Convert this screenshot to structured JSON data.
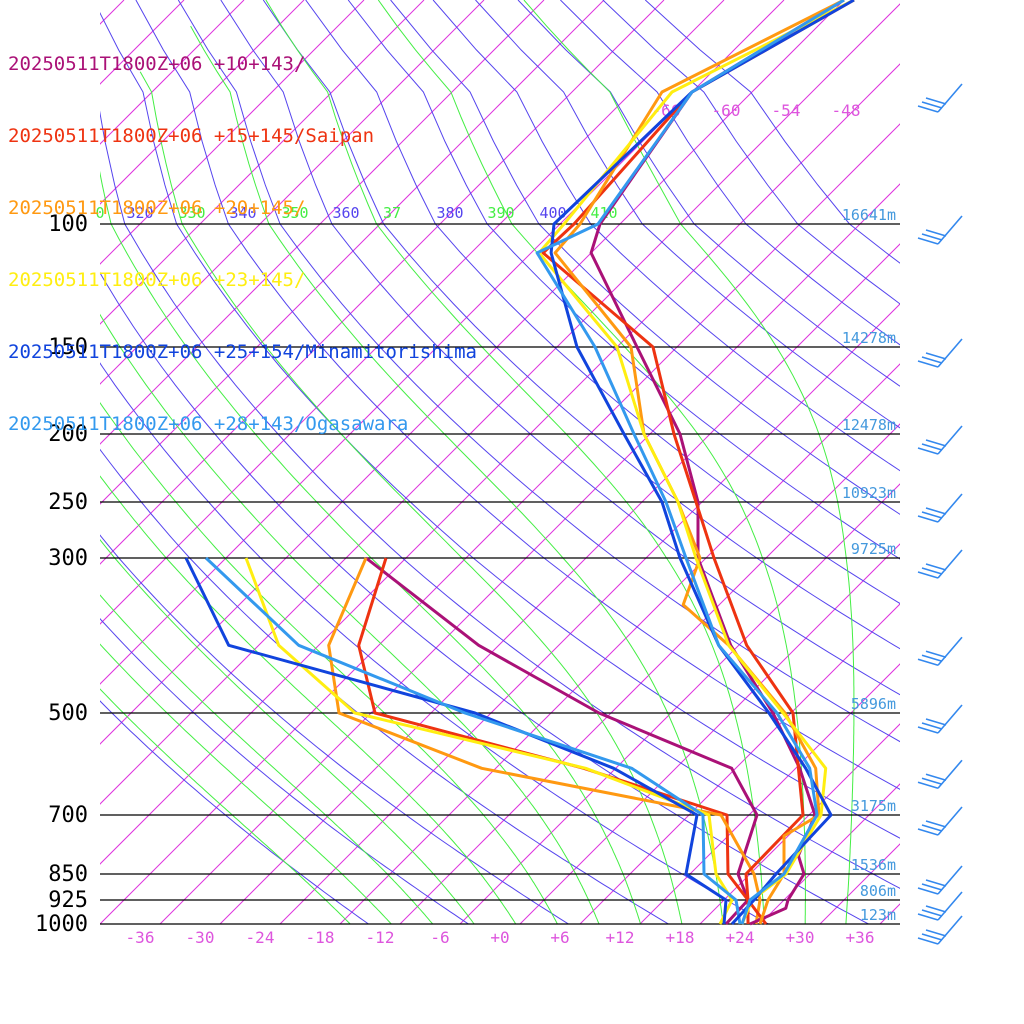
{
  "colors": {
    "isotherm": "#dd33dd",
    "dry_adiabat": "#5544ee",
    "moist_adiabat": "#44ee44",
    "isobar": "#000000",
    "height_label": "#4499dd",
    "wind_barb": "#3388ee",
    "temp_label": "#dd55dd"
  },
  "chart_data": {
    "type": "skew-t",
    "title": "",
    "legend": [
      {
        "name": "20250511T1800Z+06 +10+143/",
        "color": "#aa1177"
      },
      {
        "name": "20250511T1800Z+06 +15+145/Saipan",
        "color": "#ee3311"
      },
      {
        "name": "20250511T1800Z+06 +20+145/",
        "color": "#ff9911"
      },
      {
        "name": "20250511T1800Z+06 +23+145/",
        "color": "#ffee11"
      },
      {
        "name": "20250511T1800Z+06 +25+154/Minamitorishima",
        "color": "#1144dd"
      },
      {
        "name": "20250511T1800Z+06 +28+143/Ogasawara",
        "color": "#3399ee"
      }
    ],
    "pressure_levels": [
      100,
      150,
      200,
      250,
      300,
      500,
      700,
      850,
      925,
      1000
    ],
    "pressure_labels": [
      "100",
      "150",
      "200",
      "250",
      "300",
      "500",
      "700",
      "850",
      "925",
      "1000"
    ],
    "height_labels": [
      {
        "p": 100,
        "text": "16641m"
      },
      {
        "p": 150,
        "text": "14278m"
      },
      {
        "p": 200,
        "text": "12478m"
      },
      {
        "p": 250,
        "text": "10923m"
      },
      {
        "p": 300,
        "text": "9725m"
      },
      {
        "p": 500,
        "text": "5896m"
      },
      {
        "p": 700,
        "text": "3175m"
      },
      {
        "p": 850,
        "text": "1536m"
      },
      {
        "p": 925,
        "text": "806m"
      },
      {
        "p": 1000,
        "text": "123m"
      }
    ],
    "temp_ticks": [
      -36,
      -30,
      -24,
      -18,
      -12,
      -6,
      0,
      6,
      12,
      18,
      24,
      30,
      36
    ],
    "temp_tick_labels": [
      "-36",
      "-30",
      "-24",
      "-18",
      "-12",
      "-6",
      "+0",
      "+6",
      "+12",
      "+18",
      "+24",
      "+30",
      "+36"
    ],
    "upper_temp_labels": [
      "-66",
      "-60",
      "-54",
      "-48"
    ],
    "theta_labels": [
      {
        "value": "0",
        "kind": "moist"
      },
      {
        "value": "320",
        "kind": "dry"
      },
      {
        "value": "330",
        "kind": "moist"
      },
      {
        "value": "340",
        "kind": "dry"
      },
      {
        "value": "350",
        "kind": "moist"
      },
      {
        "value": "360",
        "kind": "dry"
      },
      {
        "value": "37",
        "kind": "moist"
      },
      {
        "value": "380",
        "kind": "dry"
      },
      {
        "value": "390",
        "kind": "moist"
      },
      {
        "value": "400",
        "kind": "dry"
      },
      {
        "value": "410",
        "kind": "moist"
      }
    ],
    "temperature_profiles": [
      {
        "station": 0,
        "points": [
          [
            1000,
            25
          ],
          [
            950,
            27
          ],
          [
            925,
            26.4
          ],
          [
            850,
            25.4
          ],
          [
            800,
            23
          ],
          [
            700,
            20.6
          ],
          [
            600,
            14.4
          ],
          [
            500,
            6.2
          ],
          [
            400,
            -4.8
          ],
          [
            300,
            -16.8
          ],
          [
            250,
            -22.4
          ],
          [
            200,
            -31
          ],
          [
            150,
            -44
          ],
          [
            110,
            -58
          ],
          [
            100,
            -60
          ],
          [
            70,
            -64
          ],
          [
            50,
            -58
          ]
        ]
      },
      {
        "station": 1,
        "points": [
          [
            1000,
            26.6
          ],
          [
            925,
            22.4
          ],
          [
            850,
            19.6
          ],
          [
            700,
            19.4
          ],
          [
            500,
            8.2
          ],
          [
            400,
            -3.2
          ],
          [
            300,
            -15.2
          ],
          [
            250,
            -22.6
          ],
          [
            200,
            -31.6
          ],
          [
            150,
            -42.4
          ],
          [
            110,
            -62.8
          ],
          [
            100,
            -62.6
          ],
          [
            70,
            -64
          ],
          [
            50,
            -57
          ]
        ]
      },
      {
        "station": 2,
        "points": [
          [
            1000,
            26
          ],
          [
            925,
            24.4
          ],
          [
            850,
            23.4
          ],
          [
            750,
            19.6
          ],
          [
            700,
            21
          ],
          [
            600,
            16
          ],
          [
            500,
            7.4
          ],
          [
            400,
            -5
          ],
          [
            350,
            -13.6
          ],
          [
            300,
            -16.6
          ],
          [
            250,
            -24.4
          ],
          [
            200,
            -34.6
          ],
          [
            150,
            -44.6
          ],
          [
            110,
            -61.6
          ],
          [
            100,
            -62
          ],
          [
            70,
            -67
          ],
          [
            50,
            -58
          ]
        ]
      },
      {
        "station": 3,
        "points": [
          [
            1000,
            24.2
          ],
          [
            925,
            22.8
          ],
          [
            850,
            23.6
          ],
          [
            700,
            21.2
          ],
          [
            600,
            17
          ],
          [
            500,
            7.2
          ],
          [
            400,
            -5
          ],
          [
            300,
            -17
          ],
          [
            250,
            -24.4
          ],
          [
            200,
            -34.6
          ],
          [
            150,
            -46
          ],
          [
            110,
            -63.2
          ],
          [
            100,
            -63.6
          ],
          [
            70,
            -66
          ],
          [
            50,
            -57
          ]
        ]
      },
      {
        "station": 4,
        "points": [
          [
            1000,
            23.2
          ],
          [
            925,
            23
          ],
          [
            850,
            22.6
          ],
          [
            700,
            22.2
          ],
          [
            600,
            15
          ],
          [
            500,
            5.8
          ],
          [
            400,
            -6
          ],
          [
            300,
            -18.6
          ],
          [
            250,
            -26
          ],
          [
            200,
            -36.6
          ],
          [
            150,
            -50
          ],
          [
            110,
            -62
          ],
          [
            100,
            -64.6
          ],
          [
            70,
            -64
          ],
          [
            50,
            -57
          ]
        ]
      },
      {
        "station": 5,
        "points": [
          [
            1000,
            24.2
          ],
          [
            925,
            22.6
          ],
          [
            850,
            23.4
          ],
          [
            700,
            20.8
          ],
          [
            600,
            15.4
          ],
          [
            500,
            6.6
          ],
          [
            400,
            -6
          ],
          [
            300,
            -18
          ],
          [
            250,
            -25.6
          ],
          [
            200,
            -35.6
          ],
          [
            150,
            -48.2
          ],
          [
            110,
            -63.4
          ],
          [
            100,
            -60.2
          ],
          [
            70,
            -64
          ],
          [
            50,
            -58
          ]
        ]
      }
    ],
    "dewpoint_profiles": [
      {
        "station": 0,
        "points": [
          [
            1000,
            22.6
          ],
          [
            925,
            22.4
          ],
          [
            850,
            18.8
          ],
          [
            700,
            14.8
          ],
          [
            600,
            7.6
          ],
          [
            500,
            -11.2
          ],
          [
            400,
            -30
          ],
          [
            300,
            -50
          ]
        ]
      },
      {
        "station": 1,
        "points": [
          [
            1000,
            24.8
          ],
          [
            925,
            22.4
          ],
          [
            850,
            17.8
          ],
          [
            700,
            11.8
          ],
          [
            600,
            -7.2
          ],
          [
            500,
            -33.6
          ],
          [
            400,
            -42
          ],
          [
            300,
            -48
          ]
        ]
      },
      {
        "station": 2,
        "points": [
          [
            1000,
            25.6
          ],
          [
            925,
            23.6
          ],
          [
            850,
            20.4
          ],
          [
            700,
            11.2
          ],
          [
            600,
            -17.4
          ],
          [
            500,
            -37.2
          ],
          [
            400,
            -45
          ],
          [
            300,
            -50
          ]
        ]
      },
      {
        "station": 3,
        "points": [
          [
            1000,
            22
          ],
          [
            925,
            20.8
          ],
          [
            850,
            16.6
          ],
          [
            700,
            10
          ],
          [
            600,
            -7
          ],
          [
            500,
            -35.6
          ],
          [
            400,
            -50
          ],
          [
            300,
            -62
          ]
        ]
      },
      {
        "station": 4,
        "points": [
          [
            1000,
            22.4
          ],
          [
            925,
            20.2
          ],
          [
            850,
            13.6
          ],
          [
            700,
            8.8
          ],
          [
            600,
            -4.2
          ],
          [
            500,
            -23.6
          ],
          [
            400,
            -55
          ],
          [
            300,
            -68
          ]
        ]
      },
      {
        "station": 5,
        "points": [
          [
            1000,
            24
          ],
          [
            925,
            21.2
          ],
          [
            850,
            15.4
          ],
          [
            700,
            9.4
          ],
          [
            600,
            -2.4
          ],
          [
            500,
            -24.6
          ],
          [
            400,
            -48
          ],
          [
            300,
            -66
          ]
        ]
      }
    ],
    "wind_barbs": [
      {
        "p": 70
      },
      {
        "p": 100
      },
      {
        "p": 150
      },
      {
        "p": 200
      },
      {
        "p": 250
      },
      {
        "p": 300
      },
      {
        "p": 400
      },
      {
        "p": 500
      },
      {
        "p": 600
      },
      {
        "p": 700
      },
      {
        "p": 850
      },
      {
        "p": 925
      },
      {
        "p": 1000
      }
    ]
  }
}
